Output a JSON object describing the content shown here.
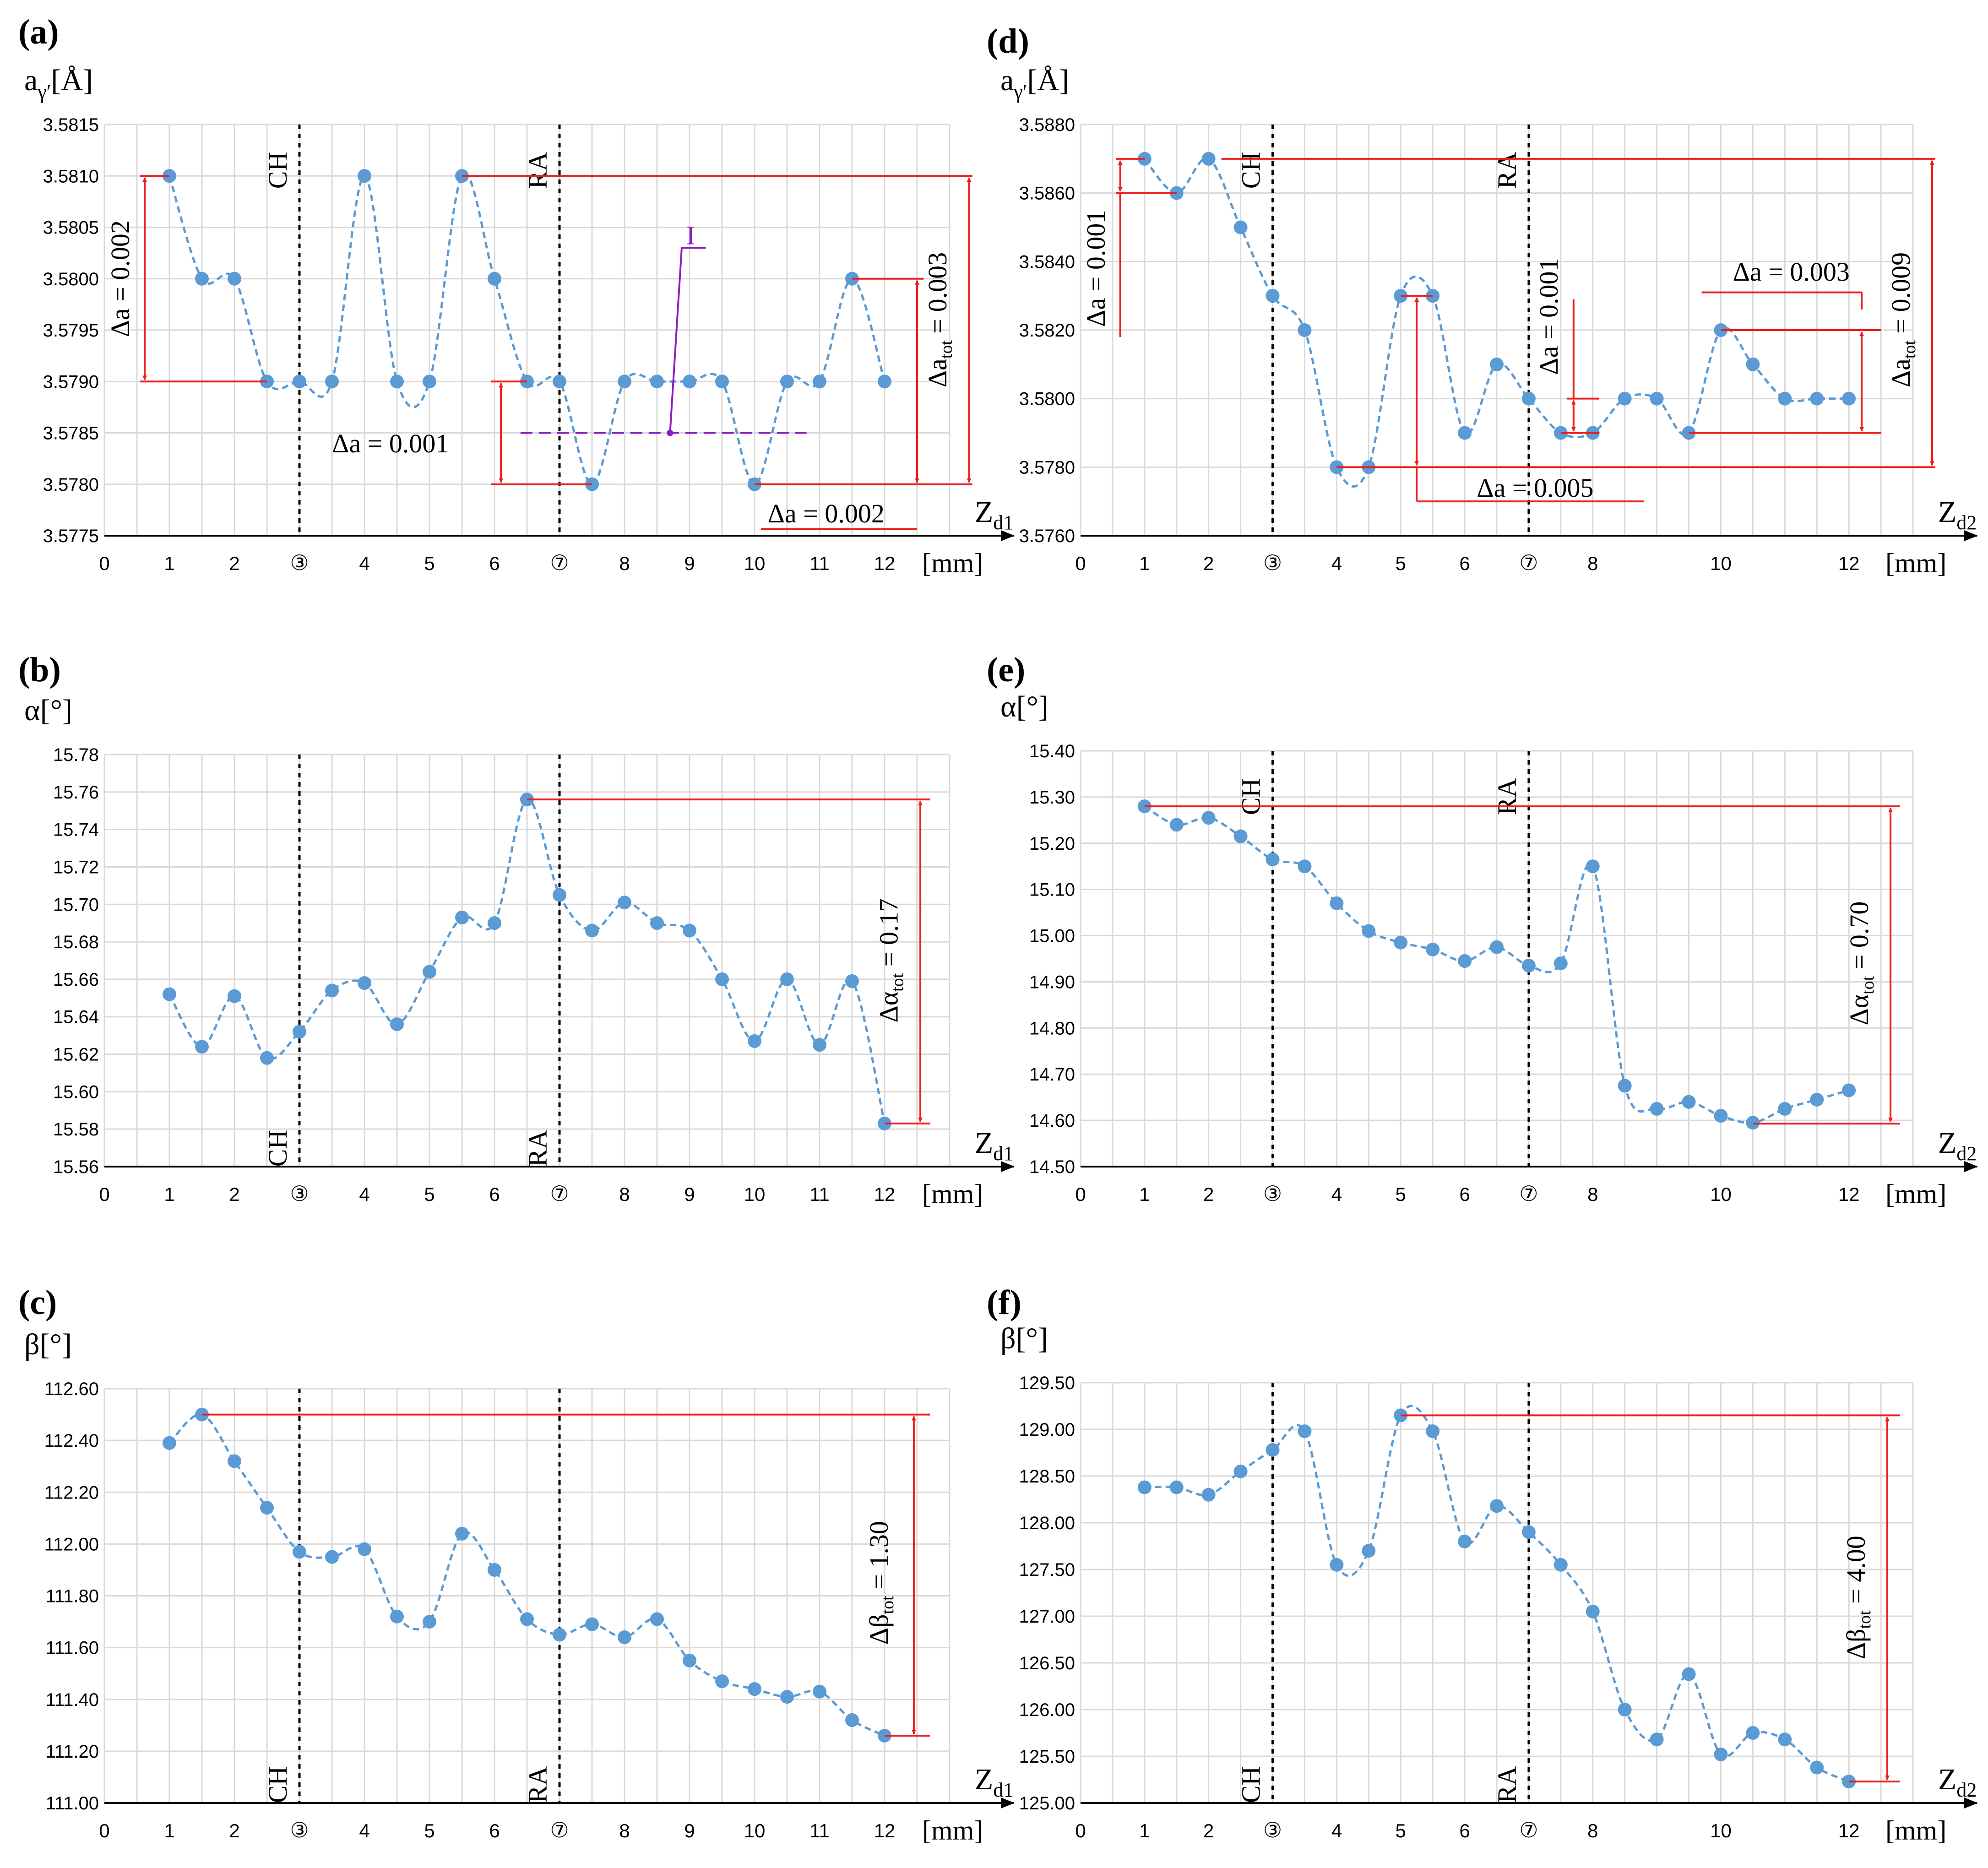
{
  "chart_data": [
    {
      "type": "line",
      "panel": "(a)",
      "ylabel_main": "a",
      "ylabel_sub": "γ′",
      "ylabel_unit": "[Å]",
      "xlabel": "[mm]",
      "zone_label": "Z",
      "zone_sub": "d1",
      "ylim": [
        3.5775,
        3.5815
      ],
      "ystep": 0.0005,
      "ydec": 4,
      "xlim": [
        0,
        13
      ],
      "x_ticks": [
        "0",
        "1",
        "2",
        "③",
        "4",
        "5",
        "6",
        "⑦",
        "8",
        "9",
        "10",
        "11",
        "12"
      ],
      "vlines": [
        {
          "x": 3,
          "label": "CH",
          "pos": "top"
        },
        {
          "x": 7,
          "label": "RA",
          "pos": "top"
        }
      ],
      "x": [
        1,
        1.5,
        2,
        2.5,
        3,
        3.5,
        4,
        4.5,
        5,
        5.5,
        6,
        6.5,
        7,
        7.5,
        8,
        8.5,
        9,
        9.5,
        10,
        10.5,
        11,
        11.5,
        12
      ],
      "values": [
        3.581,
        3.58,
        3.58,
        3.579,
        3.579,
        3.579,
        3.581,
        3.579,
        3.579,
        3.581,
        3.58,
        3.579,
        3.579,
        3.578,
        3.579,
        3.579,
        3.579,
        3.579,
        3.578,
        3.579,
        3.579,
        3.58,
        3.579
      ],
      "annotations": [
        {
          "main": "Δa = 0.002",
          "sub": "",
          "rest": ""
        },
        {
          "main": "Δa = 0.001",
          "sub": "",
          "rest": ""
        },
        {
          "main": "Δa = 0.002",
          "sub": "",
          "rest": ""
        },
        {
          "main": "Δa",
          "sub": "tot",
          "rest": " = 0.003"
        }
      ],
      "marker_label": "I",
      "marker_level": 3.5785
    },
    {
      "type": "line",
      "panel": "(b)",
      "ylabel_main": "α",
      "ylabel_sub": "",
      "ylabel_unit": "[°]",
      "xlabel": "[mm]",
      "zone_label": "Z",
      "zone_sub": "d1",
      "ylim": [
        15.56,
        15.78
      ],
      "ystep": 0.02,
      "ydec": 2,
      "xlim": [
        0,
        13
      ],
      "x_ticks": [
        "0",
        "1",
        "2",
        "③",
        "4",
        "5",
        "6",
        "⑦",
        "8",
        "9",
        "10",
        "11",
        "12"
      ],
      "vlines": [
        {
          "x": 3,
          "label": "CH",
          "pos": "bottom"
        },
        {
          "x": 7,
          "label": "RA",
          "pos": "bottom"
        }
      ],
      "x": [
        1,
        1.5,
        2,
        2.5,
        3,
        3.5,
        4,
        4.5,
        5,
        5.5,
        6,
        6.5,
        7,
        7.5,
        8,
        8.5,
        9,
        9.5,
        10,
        10.5,
        11,
        11.5,
        12
      ],
      "values": [
        15.652,
        15.624,
        15.651,
        15.618,
        15.632,
        15.654,
        15.658,
        15.636,
        15.664,
        15.693,
        15.69,
        15.756,
        15.705,
        15.686,
        15.701,
        15.69,
        15.686,
        15.66,
        15.627,
        15.66,
        15.625,
        15.659,
        15.583
      ],
      "annotations": [
        {
          "main": "Δα",
          "sub": "tot",
          "rest": " = 0.17"
        }
      ]
    },
    {
      "type": "line",
      "panel": "(c)",
      "ylabel_main": "β",
      "ylabel_sub": "",
      "ylabel_unit": "[°]",
      "xlabel": "[mm]",
      "zone_label": "Z",
      "zone_sub": "d1",
      "ylim": [
        111.0,
        112.6
      ],
      "ystep": 0.2,
      "ydec": 2,
      "xlim": [
        0,
        13
      ],
      "x_ticks": [
        "0",
        "1",
        "2",
        "③",
        "4",
        "5",
        "6",
        "⑦",
        "8",
        "9",
        "10",
        "11",
        "12"
      ],
      "vlines": [
        {
          "x": 3,
          "label": "CH",
          "pos": "bottom"
        },
        {
          "x": 7,
          "label": "RA",
          "pos": "bottom"
        }
      ],
      "x": [
        1,
        1.5,
        2,
        2.5,
        3,
        3.5,
        4,
        4.5,
        5,
        5.5,
        6,
        6.5,
        7,
        7.5,
        8,
        8.5,
        9,
        9.5,
        10,
        10.5,
        11,
        11.5,
        12
      ],
      "values": [
        112.39,
        112.5,
        112.32,
        112.14,
        111.97,
        111.95,
        111.98,
        111.72,
        111.7,
        112.04,
        111.9,
        111.71,
        111.65,
        111.69,
        111.64,
        111.71,
        111.55,
        111.47,
        111.44,
        111.41,
        111.43,
        111.32,
        111.26
      ],
      "annotations": [
        {
          "main": "Δβ",
          "sub": "tot",
          "rest": " = 1.30"
        }
      ]
    },
    {
      "type": "line",
      "panel": "(d)",
      "ylabel_main": "a",
      "ylabel_sub": "γ′",
      "ylabel_unit": "[Å]",
      "xlabel": "[mm]",
      "zone_label": "Z",
      "zone_sub": "d2",
      "ylim": [
        3.576,
        3.588
      ],
      "ystep": 0.002,
      "ydec": 4,
      "xlim": [
        0,
        13
      ],
      "x_ticks": [
        "0",
        "1",
        "2",
        "③",
        "4",
        "5",
        "6",
        "⑦",
        "8",
        "10",
        "12"
      ],
      "x_tick_pos": [
        0,
        1,
        2,
        3,
        4,
        5,
        6,
        7,
        8,
        10,
        12
      ],
      "vlines": [
        {
          "x": 3,
          "label": "CH",
          "pos": "top"
        },
        {
          "x": 7,
          "label": "RA",
          "pos": "top"
        }
      ],
      "x": [
        1,
        1.5,
        2,
        2.5,
        3,
        3.5,
        4,
        4.5,
        5,
        5.5,
        6,
        6.5,
        7,
        7.5,
        8,
        8.5,
        9,
        9.5,
        10,
        10.5,
        11,
        11.5,
        12
      ],
      "values": [
        3.587,
        3.586,
        3.587,
        3.585,
        3.583,
        3.582,
        3.578,
        3.578,
        3.583,
        3.583,
        3.579,
        3.581,
        3.58,
        3.579,
        3.579,
        3.58,
        3.58,
        3.579,
        3.582,
        3.581,
        3.58,
        3.58,
        3.58
      ],
      "annotations": [
        {
          "main": "Δa = 0.001",
          "sub": "",
          "rest": ""
        },
        {
          "main": "Δa = 0.005",
          "sub": "",
          "rest": ""
        },
        {
          "main": "Δa = 0.001",
          "sub": "",
          "rest": ""
        },
        {
          "main": "Δa = 0.003",
          "sub": "",
          "rest": ""
        },
        {
          "main": "Δa",
          "sub": "tot",
          "rest": " = 0.009"
        }
      ]
    },
    {
      "type": "line",
      "panel": "(e)",
      "ylabel_main": "α",
      "ylabel_sub": "",
      "ylabel_unit": "[°]",
      "xlabel": "[mm]",
      "zone_label": "Z",
      "zone_sub": "d2",
      "ylim": [
        14.5,
        15.4
      ],
      "ystep": 0.1,
      "ydec": 2,
      "xlim": [
        0,
        13
      ],
      "x_ticks": [
        "0",
        "1",
        "2",
        "③",
        "4",
        "5",
        "6",
        "⑦",
        "8",
        "10",
        "12"
      ],
      "x_tick_pos": [
        0,
        1,
        2,
        3,
        4,
        5,
        6,
        7,
        8,
        10,
        12
      ],
      "vlines": [
        {
          "x": 3,
          "label": "CH",
          "pos": "top"
        },
        {
          "x": 7,
          "label": "RA",
          "pos": "top"
        }
      ],
      "x": [
        1,
        1.5,
        2,
        2.5,
        3,
        3.5,
        4,
        4.5,
        5,
        5.5,
        6,
        6.5,
        7,
        7.5,
        8,
        8.5,
        9,
        9.5,
        10,
        10.5,
        11,
        11.5,
        12
      ],
      "values": [
        15.28,
        15.24,
        15.255,
        15.215,
        15.165,
        15.15,
        15.07,
        15.01,
        14.985,
        14.97,
        14.945,
        14.975,
        14.935,
        14.94,
        15.15,
        14.675,
        14.625,
        14.64,
        14.61,
        14.595,
        14.625,
        14.645,
        14.665
      ],
      "annotations": [
        {
          "main": "Δα",
          "sub": "tot",
          "rest": " = 0.70"
        }
      ]
    },
    {
      "type": "line",
      "panel": "(f)",
      "ylabel_main": "β",
      "ylabel_sub": "",
      "ylabel_unit": "[°]",
      "xlabel": "[mm]",
      "zone_label": "Z",
      "zone_sub": "d2",
      "ylim": [
        125.0,
        129.5
      ],
      "ystep": 0.5,
      "ydec": 2,
      "xlim": [
        0,
        13
      ],
      "x_ticks": [
        "0",
        "1",
        "2",
        "③",
        "4",
        "5",
        "6",
        "⑦",
        "8",
        "10",
        "12"
      ],
      "x_tick_pos": [
        0,
        1,
        2,
        3,
        4,
        5,
        6,
        7,
        8,
        10,
        12
      ],
      "vlines": [
        {
          "x": 3,
          "label": "CH",
          "pos": "bottom"
        },
        {
          "x": 7,
          "label": "RA",
          "pos": "bottom"
        }
      ],
      "x": [
        1,
        1.5,
        2,
        2.5,
        3,
        3.5,
        4,
        4.5,
        5,
        5.5,
        6,
        6.5,
        7,
        7.5,
        8,
        8.5,
        9,
        9.5,
        10,
        10.5,
        11,
        11.5,
        12
      ],
      "values": [
        128.38,
        128.38,
        128.3,
        128.55,
        128.78,
        128.98,
        127.55,
        127.7,
        129.15,
        128.98,
        127.8,
        128.18,
        127.9,
        127.55,
        127.05,
        126.0,
        125.68,
        126.38,
        125.52,
        125.75,
        125.68,
        125.38,
        125.23
      ],
      "annotations": [
        {
          "main": "Δβ",
          "sub": "tot",
          "rest": " = 4.00"
        }
      ]
    }
  ],
  "colors": {
    "series": "#5b9bd5",
    "annotation": "#ee1c1c",
    "marker": "#8b1fbe",
    "grid": "#d9d9d9"
  }
}
